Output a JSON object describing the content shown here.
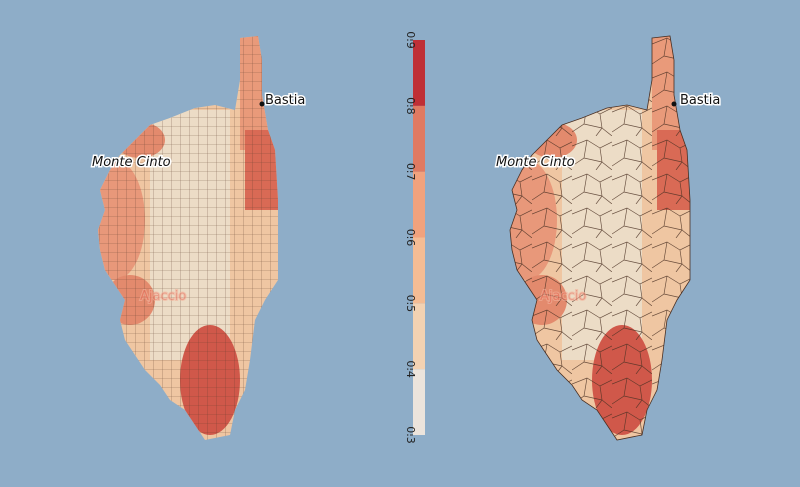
{
  "places": [
    "Bastia",
    "Monte Cinto",
    "Ajaccio"
  ],
  "legend": {
    "ticks": [
      0.3,
      0.4,
      0.5,
      0.6,
      0.7,
      0.8,
      0.9
    ],
    "colors": [
      "#ece4dc",
      "#f3d2b2",
      "#f4bc94",
      "#f1a27d",
      "#e07a62",
      "#bf2f36"
    ]
  }
}
